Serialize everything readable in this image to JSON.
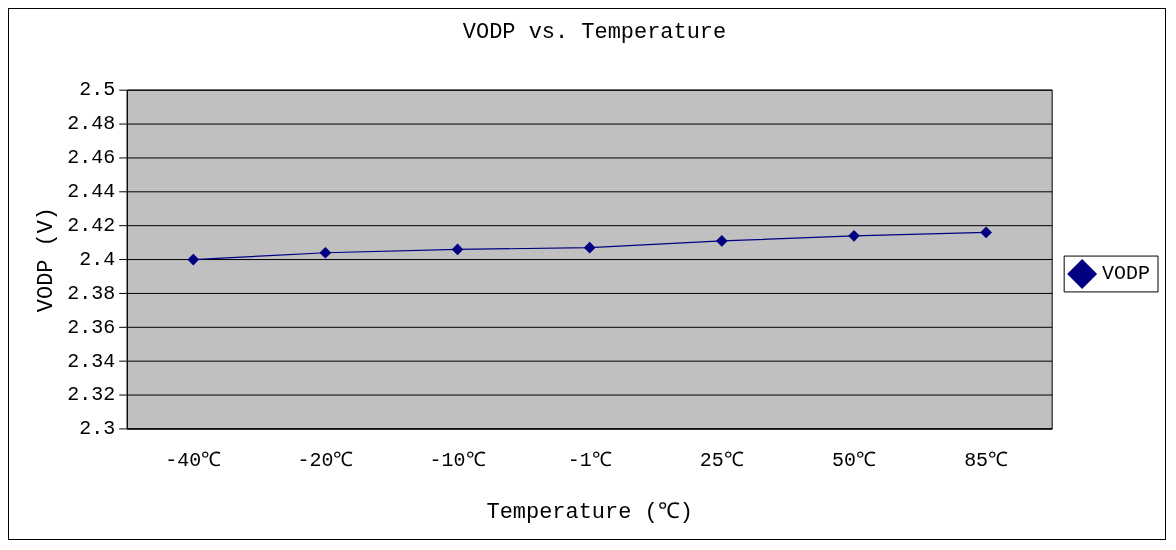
{
  "chart_data": {
    "type": "line",
    "title": "VODP vs. Temperature",
    "xlabel": "Temperature (℃)",
    "ylabel": "VODP (V)",
    "categories": [
      "-40℃",
      "-20℃",
      "-10℃",
      "-1℃",
      "25℃",
      "50℃",
      "85℃"
    ],
    "series": [
      {
        "name": "VODP",
        "color": "#000080",
        "values": [
          2.4,
          2.404,
          2.406,
          2.407,
          2.411,
          2.414,
          2.416
        ]
      }
    ],
    "ylim": [
      2.3,
      2.5
    ],
    "yticks": [
      2.3,
      2.32,
      2.34,
      2.36,
      2.38,
      2.4,
      2.42,
      2.44,
      2.46,
      2.48,
      2.5
    ],
    "grid": "y",
    "legend": "right",
    "marker": "diamond",
    "line_style": "solid"
  }
}
